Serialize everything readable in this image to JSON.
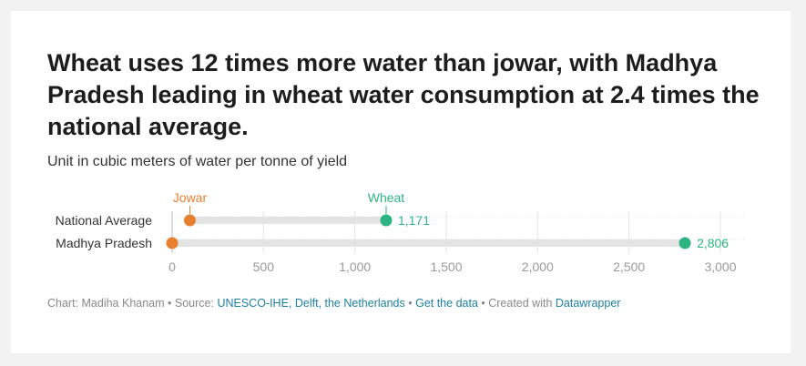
{
  "header": {
    "title": "Wheat uses 12 times more water than jowar, with Madhya Pradesh leading in wheat water consumption at 2.4 times the national average.",
    "subtitle": "Unit in cubic meters of water per tonne of yield"
  },
  "chart_data": {
    "type": "dot",
    "categories": [
      "National Average",
      "Madhya Pradesh"
    ],
    "series": [
      {
        "name": "Jowar",
        "color": "#e67f2e",
        "values": [
          97,
          0
        ]
      },
      {
        "name": "Wheat",
        "color": "#2db482",
        "values": [
          1171,
          2806
        ]
      }
    ],
    "value_labels": [
      [
        "",
        "1,171"
      ],
      [
        "",
        "2,806"
      ]
    ],
    "xlim": [
      0,
      3000
    ],
    "x_ticks": [
      0,
      500,
      1000,
      1500,
      2000,
      2500,
      3000
    ],
    "x_tick_labels": [
      "0",
      "500",
      "1,000",
      "1,500",
      "2,000",
      "2,500",
      "3,000"
    ],
    "grid": true
  },
  "footer": {
    "chart_by": "Chart: Madiha Khanam",
    "separator": " • ",
    "source_prefix": "Source: ",
    "source_link": "UNESCO-IHE, Delft, the Netherlands",
    "get_data_link": "Get the data",
    "created_with": "Created with ",
    "datawrapper_link": "Datawrapper"
  }
}
